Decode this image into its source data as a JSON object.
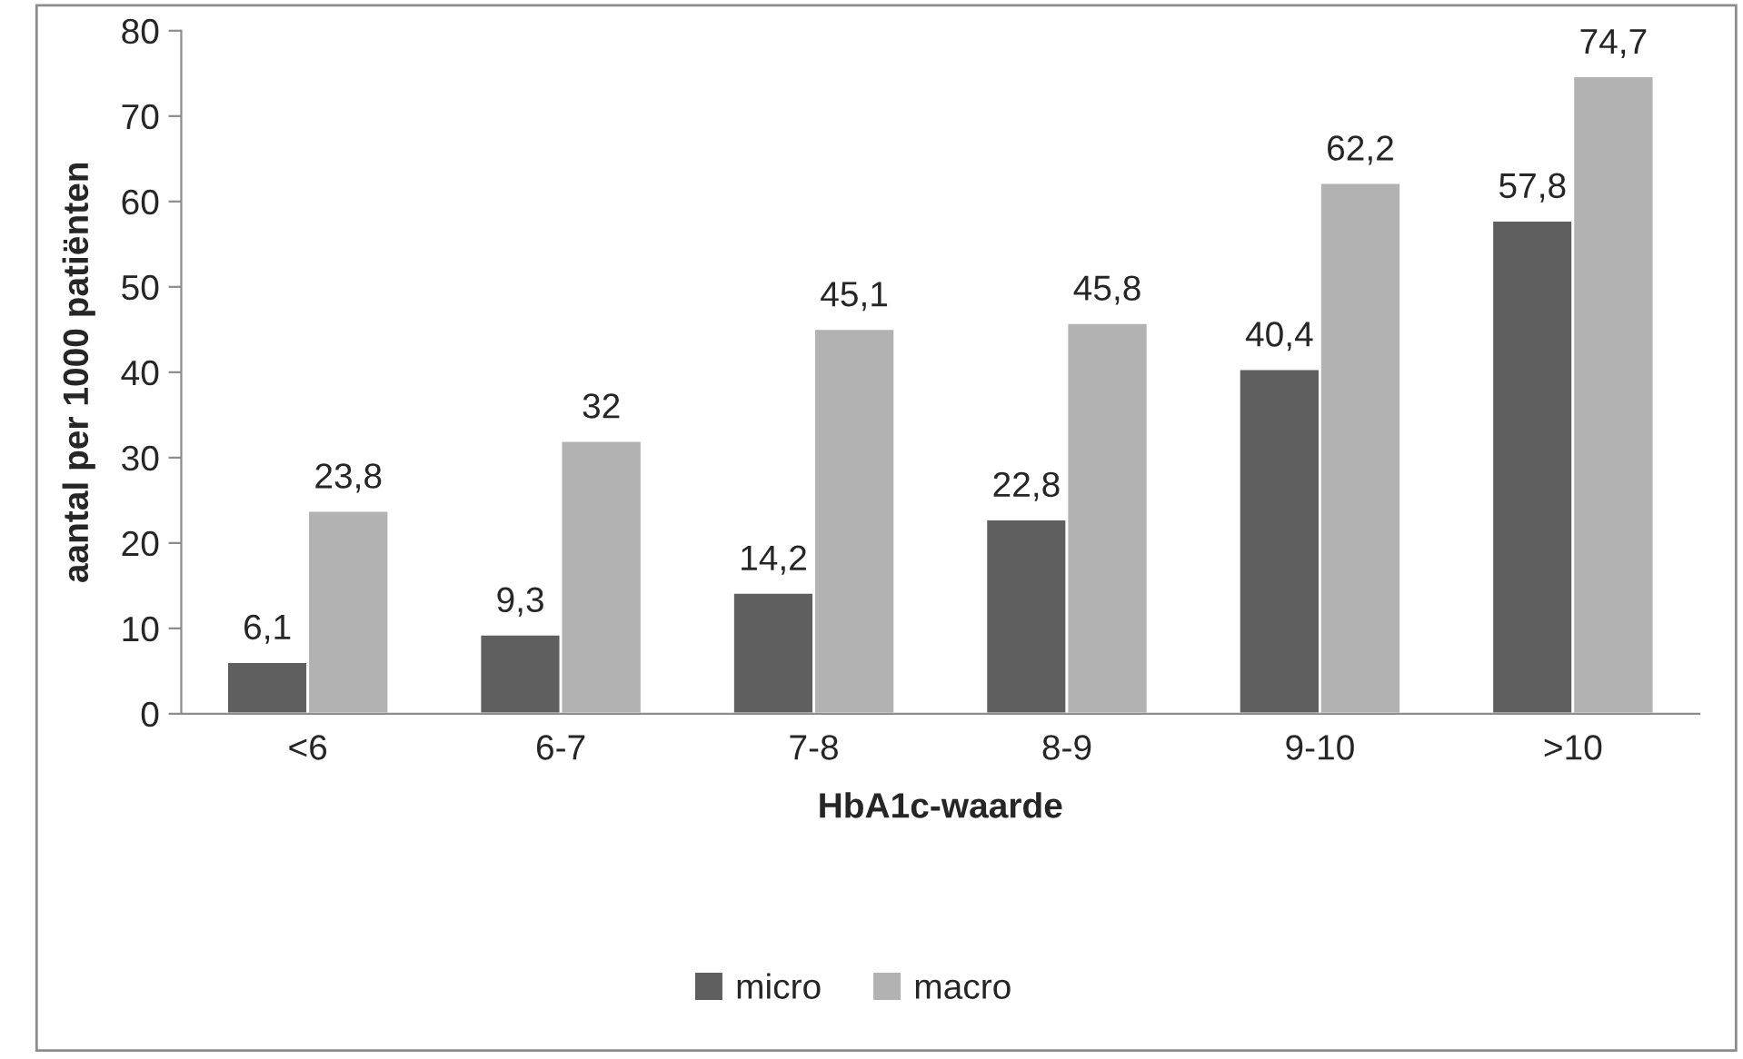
{
  "chart_data": {
    "type": "bar",
    "xlabel": "HbA1c-waarde",
    "ylabel": "aantal per 1000 patiënten",
    "categories": [
      "<6",
      "6-7",
      "7-8",
      "8-9",
      "9-10",
      ">10"
    ],
    "series": [
      {
        "name": "micro",
        "color": "#5f5f5f",
        "values": [
          6.1,
          9.3,
          14.2,
          22.8,
          40.4,
          57.8
        ],
        "value_labels": [
          "6,1",
          "9,3",
          "14,2",
          "22,8",
          "40,4",
          "57,8"
        ]
      },
      {
        "name": "macro",
        "color": "#b2b2b2",
        "values": [
          23.8,
          32,
          45.1,
          45.8,
          62.2,
          74.7
        ],
        "value_labels": [
          "23,8",
          "32",
          "45,1",
          "45,8",
          "62,2",
          "74,7"
        ]
      }
    ],
    "ylim": [
      0,
      80
    ],
    "yticks": [
      0,
      10,
      20,
      30,
      40,
      50,
      60,
      70,
      80
    ],
    "grid": false,
    "legend": "bottom"
  }
}
